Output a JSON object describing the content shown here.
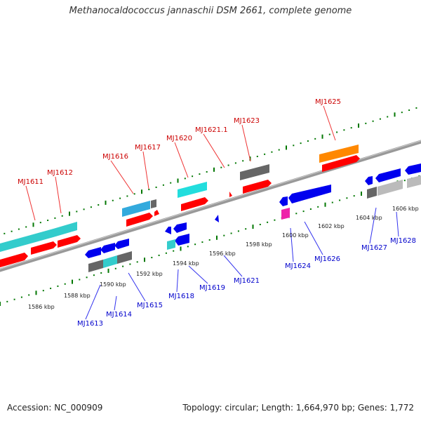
{
  "title": "Methanocaldococcus jannaschii DSM 2661, complete genome",
  "accession": "Accession: NC_000909",
  "summary": "Topology: circular; Length: 1,664,970 bp; Genes: 1,772",
  "colors": {
    "backbone": "#888888",
    "ticks": "#007700",
    "plus_cds": "#ff0000",
    "minus_cds": "#0000ee",
    "cyan": "#33cccc",
    "gray": "#666666",
    "light_gray": "#bbbbbb",
    "orange": "#ff8800",
    "magenta": "#ee22aa",
    "top_label": "#cc0000",
    "bottom_label": "#0000cc"
  },
  "scale_labels": [
    "1586 kbp",
    "1588 kbp",
    "1590 kbp",
    "1592 kbp",
    "1594 kbp",
    "1596 kbp",
    "1598 kbp",
    "1600 kbp",
    "1602 kbp",
    "1604 kbp",
    "1606 kbp"
  ],
  "top_gene_labels": [
    "MJ1611",
    "MJ1612",
    "MJ1616",
    "MJ1617",
    "MJ1620",
    "MJ1621.1",
    "MJ1623",
    "MJ1625"
  ],
  "bottom_gene_labels": [
    "MJ1613",
    "MJ1614",
    "MJ1615",
    "MJ1618",
    "MJ1619",
    "MJ1621",
    "MJ1624",
    "MJ1626",
    "MJ1627",
    "MJ1628"
  ]
}
